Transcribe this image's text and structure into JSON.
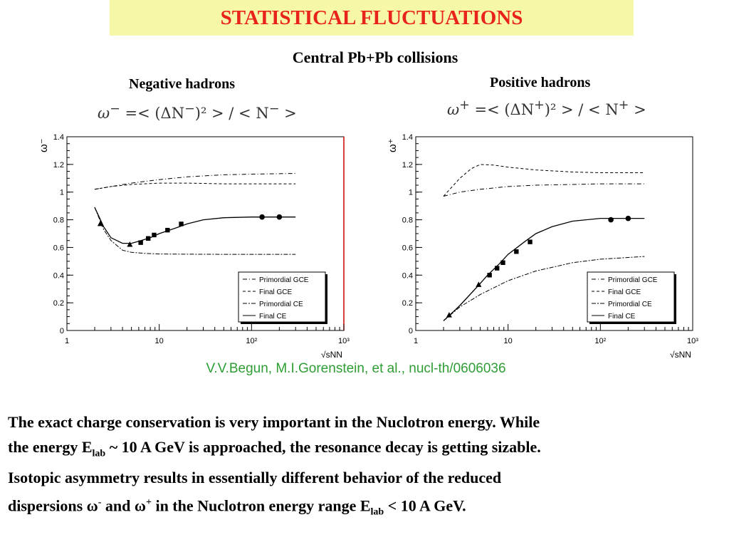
{
  "header": {
    "title": "STATISTICAL FLUCTUATIONS"
  },
  "subtitle": "Central Pb+Pb collisions",
  "panels": {
    "left_title": "Negative hadrons",
    "right_title": "Positive hadrons",
    "left_formula": {
      "lhs": "ω",
      "sup": "−",
      "mid": " =< (ΔN",
      "sup2": "−",
      "rest": ")² > / < N",
      "sup3": "−",
      "end": " >"
    },
    "right_formula": {
      "lhs": "ω",
      "sup": "+",
      "mid": " =< (ΔN",
      "sup2": "+",
      "rest": ")² > / < N",
      "sup3": "+",
      "end": " >"
    }
  },
  "citation": "V.V.Begun, M.I.Gorenstein, et al., nucl-th/0606036",
  "body_text": {
    "l1": "The exact charge conservation is very important in the Nuclotron energy. While",
    "l2a": "the energy E",
    "l2sub": "lab",
    "l2b": " ~ 10 A GeV is approached, the resonance decay is getting sizable.",
    "l3": "Isotopic asymmetry results in essentially different behavior of the reduced",
    "l4a": "dispersions ω",
    "l4sup1": "-",
    "l4b": " and ω",
    "l4sup2": "+",
    "l4c": " in the Nuclotron energy range E",
    "l4sub": "lab",
    "l4d": " < 10 A GeV."
  },
  "chart_data": [
    {
      "type": "line",
      "xscale": "log",
      "xlim": [
        1,
        1000
      ],
      "ylim": [
        0,
        1.4
      ],
      "ylabel": "ω⁻",
      "xlabel": "√sNN",
      "xticks": [
        {
          "v": 1,
          "label": "1"
        },
        {
          "v": 10,
          "label": "10"
        },
        {
          "v": 100,
          "label": "10²"
        },
        {
          "v": 1000,
          "label": "10³"
        }
      ],
      "yticks": [
        0,
        0.2,
        0.4,
        0.6,
        0.8,
        1,
        1.2,
        1.4
      ],
      "legend": {
        "position": "bottom-right",
        "entries": [
          "Primordial GCE",
          "Final GCE",
          "Primordial CE",
          "Final CE"
        ]
      },
      "series": [
        {
          "name": "Primordial GCE",
          "dash": "6,3,1,3",
          "x": [
            2,
            3,
            5,
            10,
            20,
            50,
            100,
            300
          ],
          "y": [
            1.02,
            1.04,
            1.065,
            1.09,
            1.11,
            1.125,
            1.13,
            1.135
          ]
        },
        {
          "name": "Final GCE",
          "dash": "4,3",
          "x": [
            2,
            3,
            5,
            10,
            20,
            50,
            100,
            300
          ],
          "y": [
            1.02,
            1.04,
            1.055,
            1.065,
            1.065,
            1.06,
            1.06,
            1.06
          ]
        },
        {
          "name": "Primordial CE",
          "dash": "6,2,2,2",
          "x": [
            2,
            2.5,
            3,
            4,
            5,
            7,
            10,
            20,
            50,
            100,
            300
          ],
          "y": [
            0.89,
            0.73,
            0.65,
            0.58,
            0.565,
            0.557,
            0.553,
            0.551,
            0.55,
            0.55,
            0.55
          ]
        },
        {
          "name": "Final CE",
          "dash": "",
          "x": [
            2,
            2.5,
            3,
            4,
            5,
            6,
            8,
            10,
            15,
            20,
            30,
            50,
            100,
            200,
            300
          ],
          "y": [
            0.89,
            0.75,
            0.67,
            0.63,
            0.63,
            0.645,
            0.67,
            0.7,
            0.74,
            0.77,
            0.8,
            0.815,
            0.82,
            0.82,
            0.82
          ]
        }
      ],
      "markers": [
        {
          "shape": "triangle",
          "x": [
            2.3,
            4.8
          ],
          "y": [
            0.77,
            0.62
          ]
        },
        {
          "shape": "square",
          "x": [
            6.3,
            7.6,
            8.8,
            12.3,
            17.3
          ],
          "y": [
            0.635,
            0.665,
            0.69,
            0.725,
            0.77
          ]
        },
        {
          "shape": "circle",
          "x": [
            130,
            200
          ],
          "y": [
            0.82,
            0.82
          ]
        }
      ]
    },
    {
      "type": "line",
      "xscale": "log",
      "xlim": [
        1,
        1000
      ],
      "ylim": [
        0,
        1.4
      ],
      "ylabel": "ω⁺",
      "xlabel": "√sNN",
      "xticks": [
        {
          "v": 1,
          "label": "1"
        },
        {
          "v": 10,
          "label": "10"
        },
        {
          "v": 100,
          "label": "10²"
        },
        {
          "v": 1000,
          "label": "10³"
        }
      ],
      "yticks": [
        0,
        0.2,
        0.4,
        0.6,
        0.8,
        1,
        1.2,
        1.4
      ],
      "legend": {
        "position": "bottom-right",
        "entries": [
          "Primordial GCE",
          "Final GCE",
          "Primordial CE",
          "Final CE"
        ]
      },
      "series": [
        {
          "name": "Primordial GCE",
          "dash": "6,3,1,3",
          "x": [
            2,
            3,
            5,
            10,
            20,
            50,
            100,
            300
          ],
          "y": [
            0.97,
            1.0,
            1.02,
            1.04,
            1.05,
            1.055,
            1.06,
            1.06
          ]
        },
        {
          "name": "Final GCE",
          "dash": "4,3",
          "x": [
            2,
            3,
            4,
            5,
            7,
            10,
            20,
            50,
            100,
            300
          ],
          "y": [
            0.97,
            1.1,
            1.17,
            1.2,
            1.195,
            1.18,
            1.16,
            1.145,
            1.14,
            1.14
          ]
        },
        {
          "name": "Primordial CE",
          "dash": "6,2,2,2",
          "x": [
            2,
            3,
            5,
            10,
            20,
            50,
            100,
            300
          ],
          "y": [
            0.07,
            0.17,
            0.26,
            0.36,
            0.43,
            0.49,
            0.515,
            0.535
          ]
        },
        {
          "name": "Final CE",
          "dash": "",
          "x": [
            2,
            2.5,
            3,
            4,
            5,
            6,
            8,
            10,
            15,
            20,
            30,
            50,
            100,
            200,
            300
          ],
          "y": [
            0.07,
            0.13,
            0.18,
            0.27,
            0.34,
            0.4,
            0.48,
            0.55,
            0.64,
            0.7,
            0.75,
            0.79,
            0.81,
            0.81,
            0.81
          ]
        }
      ],
      "markers": [
        {
          "shape": "triangle",
          "x": [
            2.3,
            4.8
          ],
          "y": [
            0.11,
            0.33
          ]
        },
        {
          "shape": "square",
          "x": [
            6.3,
            7.6,
            8.8,
            12.3,
            17.3
          ],
          "y": [
            0.4,
            0.45,
            0.49,
            0.57,
            0.64
          ]
        },
        {
          "shape": "circle",
          "x": [
            130,
            200
          ],
          "y": [
            0.8,
            0.81
          ]
        }
      ]
    }
  ]
}
